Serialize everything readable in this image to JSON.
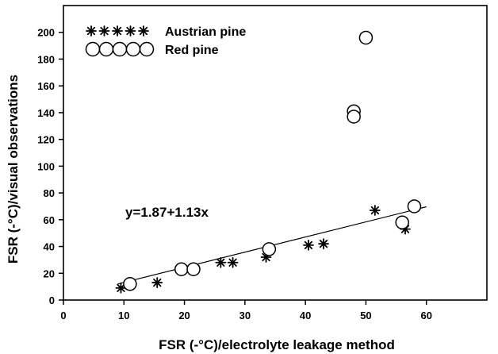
{
  "chart_data": {
    "type": "scatter",
    "title": "",
    "xlabel": "FSR (-°C)/electrolyte leakage method",
    "ylabel": "FSR (-°C)/visual observations",
    "xlim": [
      0,
      70
    ],
    "ylim": [
      0,
      220
    ],
    "xticks": [
      0,
      10,
      20,
      30,
      40,
      50,
      60
    ],
    "yticks": [
      0,
      20,
      40,
      60,
      80,
      100,
      120,
      140,
      160,
      180,
      200
    ],
    "grid": false,
    "legend_position": "top-left",
    "annotation": "y=1.87+1.13x",
    "regression": {
      "intercept": 1.87,
      "slope": 1.13,
      "x_range": [
        9,
        60
      ]
    },
    "series": [
      {
        "name": "Austrian pine",
        "marker": "asterisk",
        "points": [
          [
            9.5,
            9
          ],
          [
            15.5,
            13
          ],
          [
            26,
            28
          ],
          [
            28,
            28
          ],
          [
            33.5,
            32
          ],
          [
            40.5,
            41
          ],
          [
            43,
            42
          ],
          [
            51.5,
            67
          ],
          [
            56.5,
            53
          ]
        ]
      },
      {
        "name": "Red pine",
        "marker": "open-circle",
        "points": [
          [
            11,
            12
          ],
          [
            19.5,
            23
          ],
          [
            21.5,
            23
          ],
          [
            34,
            38
          ],
          [
            48,
            141
          ],
          [
            48,
            137
          ],
          [
            50,
            196
          ],
          [
            56,
            58
          ],
          [
            58,
            70
          ]
        ]
      }
    ]
  }
}
